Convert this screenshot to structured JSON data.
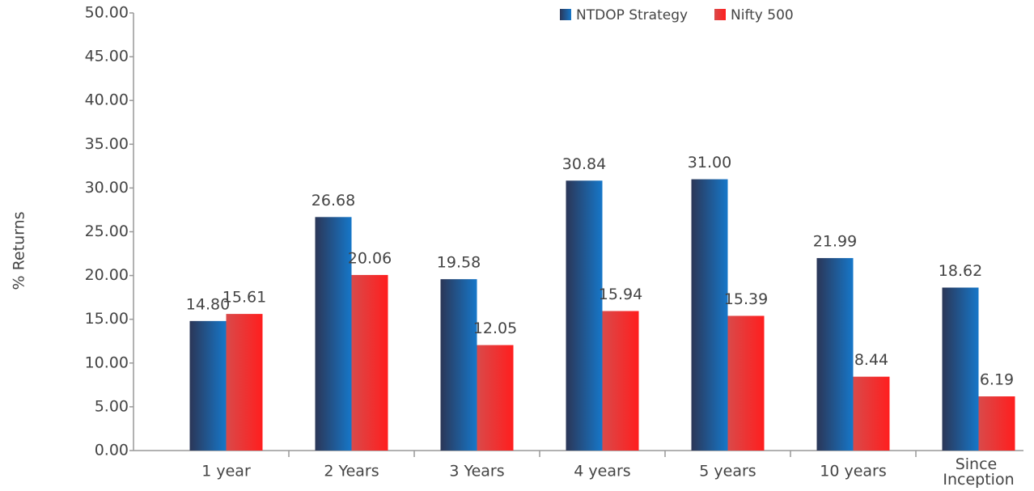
{
  "chart_data": {
    "type": "bar",
    "y_label": "% Returns",
    "categories": [
      "1 year",
      "2 Years",
      "3 Years",
      "4 years",
      "5 years",
      "10 years",
      "Since Inception"
    ],
    "series": [
      {
        "name": "NTDOP Strategy",
        "color": "#1677c9",
        "values": [
          14.8,
          26.68,
          19.58,
          30.84,
          31.0,
          21.99,
          18.62
        ],
        "value_labels": [
          "14.80",
          "26.68",
          "19.58",
          "30.84",
          "31.00",
          "21.99",
          "18.62"
        ]
      },
      {
        "name": "Nifty 500",
        "color": "#ff1e1e",
        "values": [
          15.61,
          20.06,
          12.05,
          15.94,
          15.39,
          8.44,
          6.19
        ],
        "value_labels": [
          "15.61",
          "20.06",
          "12.05",
          "15.94",
          "15.39",
          "8.44",
          "6.19"
        ]
      }
    ],
    "ylim": [
      0,
      50
    ],
    "yticks": [
      {
        "value": 0,
        "label": "0.00"
      },
      {
        "value": 5,
        "label": "5.00"
      },
      {
        "value": 10,
        "label": "10.00"
      },
      {
        "value": 15,
        "label": "15.00"
      },
      {
        "value": 20,
        "label": "20.00"
      },
      {
        "value": 25,
        "label": "25.00"
      },
      {
        "value": 30,
        "label": "30.00"
      },
      {
        "value": 35,
        "label": "35.00"
      },
      {
        "value": 40,
        "label": "40.00"
      },
      {
        "value": 45,
        "label": "45.00"
      },
      {
        "value": 50,
        "label": "50.00"
      }
    ],
    "legend": "top"
  }
}
